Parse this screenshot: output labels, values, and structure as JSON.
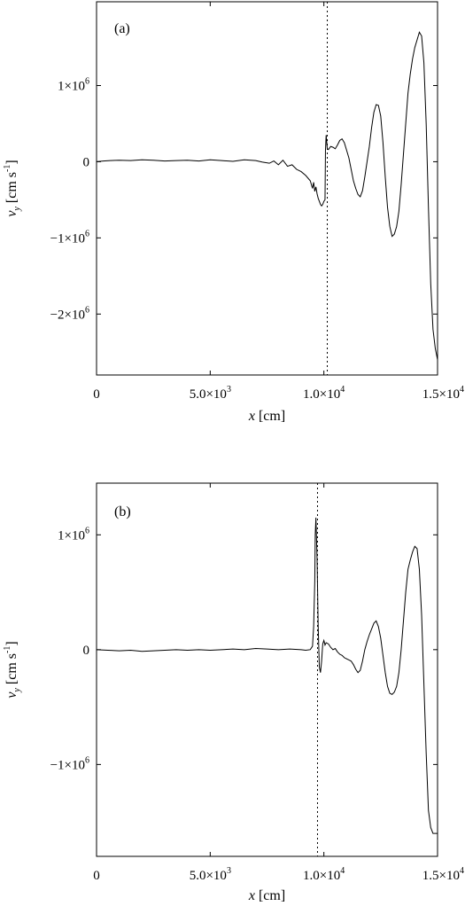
{
  "chart_data": [
    {
      "type": "line",
      "panel_label": "(a)",
      "xlabel": "x [cm]",
      "ylabel": "v_y [cm s^-1]",
      "xlim": [
        0,
        15000
      ],
      "ylim": [
        -2800000,
        2100000
      ],
      "x_ticks": [
        {
          "value": 0,
          "label": "0"
        },
        {
          "value": 5000,
          "label": "5.0×10^3"
        },
        {
          "value": 10000,
          "label": "1.0×10^4"
        },
        {
          "value": 15000,
          "label": "1.5×10^4"
        }
      ],
      "y_ticks": [
        {
          "value": 1000000,
          "label": "1×10^6"
        },
        {
          "value": 0,
          "label": "0"
        },
        {
          "value": -1000000,
          "label": "−1×10^6"
        },
        {
          "value": -2000000,
          "label": "−2×10^6"
        }
      ],
      "vline_x": 10150,
      "series": [
        {
          "x": [
            0,
            300,
            600,
            1000,
            1500,
            2000,
            2500,
            3000,
            3500,
            4000,
            4500,
            5000,
            5500,
            6000,
            6500,
            7000,
            7300,
            7600,
            7800,
            8000,
            8200,
            8400,
            8600,
            8800,
            9000,
            9200,
            9400,
            9500,
            9550,
            9600,
            9650,
            9700,
            9750,
            9800,
            9850,
            9900,
            9950,
            10000,
            10050,
            10070,
            10100,
            10150,
            10200,
            10300,
            10400,
            10500,
            10600,
            10700,
            10800,
            10900,
            11000,
            11100,
            11200,
            11300,
            11400,
            11500,
            11600,
            11700,
            11800,
            11900,
            12000,
            12100,
            12200,
            12300,
            12400,
            12500,
            12600,
            12700,
            12800,
            12900,
            13000,
            13100,
            13200,
            13300,
            13400,
            13500,
            13600,
            13700,
            13800,
            13900,
            14000,
            14100,
            14200,
            14300,
            14400,
            14500,
            14600,
            14700,
            14800,
            14900,
            15000
          ],
          "y": [
            0,
            10000,
            15000,
            20000,
            15000,
            25000,
            20000,
            10000,
            15000,
            20000,
            10000,
            25000,
            15000,
            5000,
            25000,
            15000,
            -5000,
            -20000,
            10000,
            -40000,
            20000,
            -60000,
            -40000,
            -100000,
            -130000,
            -180000,
            -250000,
            -350000,
            -270000,
            -390000,
            -330000,
            -420000,
            -480000,
            -520000,
            -560000,
            -580000,
            -560000,
            -520000,
            -500000,
            150000,
            350000,
            170000,
            160000,
            200000,
            190000,
            170000,
            220000,
            280000,
            300000,
            250000,
            150000,
            50000,
            -100000,
            -250000,
            -350000,
            -430000,
            -460000,
            -380000,
            -200000,
            0,
            200000,
            450000,
            650000,
            750000,
            740000,
            600000,
            250000,
            -200000,
            -600000,
            -850000,
            -980000,
            -950000,
            -850000,
            -650000,
            -300000,
            100000,
            500000,
            900000,
            1150000,
            1350000,
            1500000,
            1600000,
            1700000,
            1650000,
            1300000,
            500000,
            -600000,
            -1600000,
            -2200000,
            -2450000,
            -2600000
          ]
        }
      ]
    },
    {
      "type": "line",
      "panel_label": "(b)",
      "xlabel": "x [cm]",
      "ylabel": "v_y [cm s^-1]",
      "xlim": [
        0,
        15000
      ],
      "ylim": [
        -1800000,
        1450000
      ],
      "x_ticks": [
        {
          "value": 0,
          "label": "0"
        },
        {
          "value": 5000,
          "label": "5.0×10^3"
        },
        {
          "value": 10000,
          "label": "1.0×10^4"
        },
        {
          "value": 15000,
          "label": "1.5×10^4"
        }
      ],
      "y_ticks": [
        {
          "value": 1000000,
          "label": "1×10^6"
        },
        {
          "value": 0,
          "label": "0"
        },
        {
          "value": -1000000,
          "label": "−1×10^6"
        }
      ],
      "vline_x": 9720,
      "series": [
        {
          "x": [
            0,
            500,
            1000,
            1500,
            2000,
            2500,
            3000,
            3500,
            4000,
            4500,
            5000,
            5500,
            6000,
            6500,
            7000,
            7500,
            8000,
            8500,
            9000,
            9200,
            9400,
            9500,
            9550,
            9600,
            9620,
            9650,
            9700,
            9750,
            9800,
            9850,
            9900,
            9950,
            10000,
            10050,
            10100,
            10200,
            10300,
            10400,
            10500,
            10600,
            10700,
            10800,
            10900,
            11000,
            11100,
            11200,
            11300,
            11400,
            11500,
            11600,
            11700,
            11800,
            11900,
            12000,
            12100,
            12200,
            12300,
            12400,
            12500,
            12600,
            12700,
            12800,
            12900,
            13000,
            13100,
            13200,
            13300,
            13400,
            13500,
            13600,
            13700,
            13800,
            13900,
            14000,
            14100,
            14200,
            14300,
            14400,
            14500,
            14600,
            14700,
            14800,
            14900,
            15000
          ],
          "y": [
            0,
            -5000,
            -10000,
            -5000,
            -15000,
            -10000,
            -5000,
            0,
            -5000,
            0,
            -5000,
            0,
            5000,
            0,
            10000,
            5000,
            0,
            5000,
            0,
            -5000,
            0,
            30000,
            200000,
            600000,
            1000000,
            1150000,
            800000,
            200000,
            -150000,
            -200000,
            -100000,
            50000,
            80000,
            40000,
            60000,
            50000,
            20000,
            0,
            10000,
            -20000,
            -40000,
            -50000,
            -70000,
            -80000,
            -90000,
            -100000,
            -130000,
            -170000,
            -200000,
            -180000,
            -100000,
            0,
            70000,
            130000,
            180000,
            230000,
            250000,
            200000,
            100000,
            -50000,
            -200000,
            -320000,
            -380000,
            -390000,
            -370000,
            -320000,
            -200000,
            0,
            250000,
            500000,
            700000,
            780000,
            850000,
            900000,
            880000,
            700000,
            300000,
            -300000,
            -900000,
            -1400000,
            -1550000,
            -1600000,
            -1600000,
            -1600000
          ]
        }
      ]
    }
  ]
}
